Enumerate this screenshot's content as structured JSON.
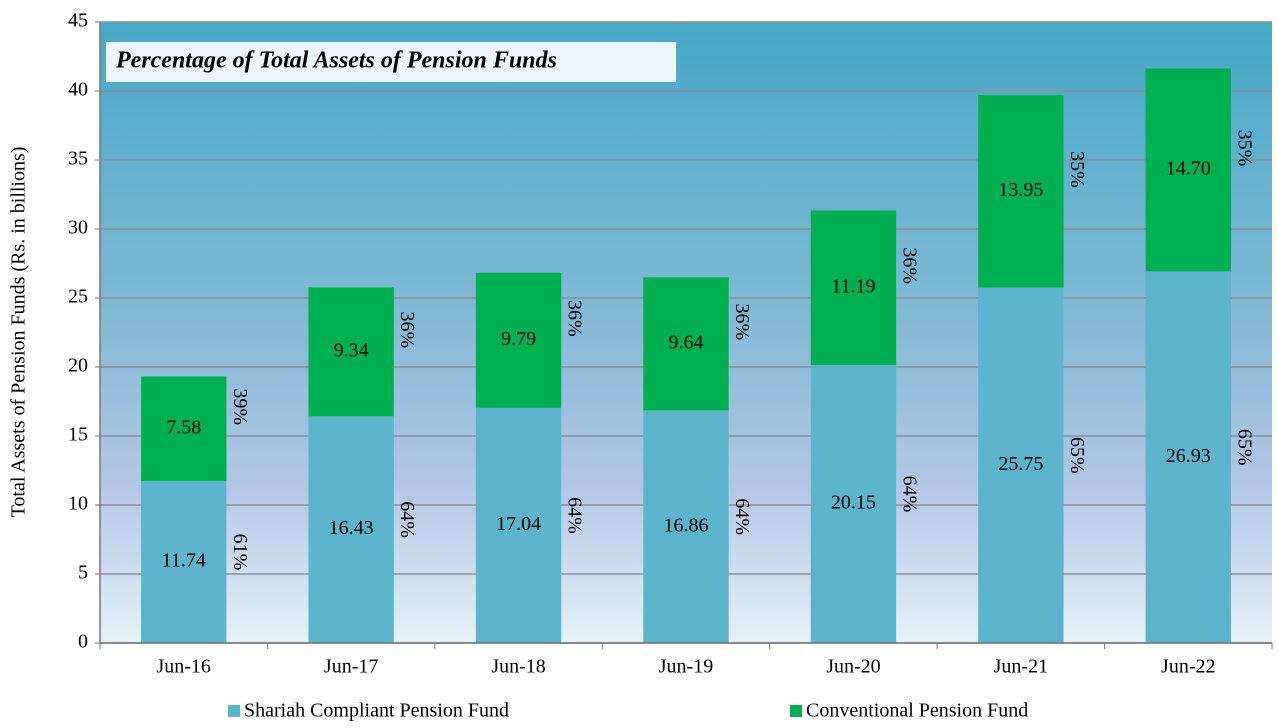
{
  "chart_data": {
    "type": "stacked_bar",
    "title": "Percentage of Total Assets of Pension Funds",
    "y_axis_label": "Total Assets  of Pension Funds (Rs. in billions)",
    "categories": [
      "Jun-16",
      "Jun-17",
      "Jun-18",
      "Jun-19",
      "Jun-20",
      "Jun-21",
      "Jun-22"
    ],
    "series": [
      {
        "name": "Shariah Compliant Pension Fund",
        "color": "#5cb4cc",
        "values": [
          11.74,
          16.43,
          17.04,
          16.86,
          20.15,
          25.75,
          26.93
        ],
        "value_labels": [
          "11.74",
          "16.43",
          "17.04",
          "16.86",
          "20.15",
          "25.75",
          "26.93"
        ],
        "share_labels": [
          "61%",
          "64%",
          "64%",
          "64%",
          "64%",
          "65%",
          "65%"
        ]
      },
      {
        "name": "Conventional Pension Fund",
        "color": "#00b050",
        "values": [
          7.58,
          9.34,
          9.79,
          9.64,
          11.19,
          13.95,
          14.7
        ],
        "value_labels": [
          "7.58",
          "9.34",
          "9.79",
          "9.64",
          "11.19",
          "13.95",
          "14.70"
        ],
        "share_labels": [
          "39%",
          "36%",
          "36%",
          "36%",
          "36%",
          "35%",
          "35%"
        ]
      }
    ],
    "ylim": [
      0,
      45
    ],
    "yticks": [
      0,
      5,
      10,
      15,
      20,
      25,
      30,
      35,
      40,
      45
    ],
    "grid": true,
    "legend": "bottom"
  }
}
